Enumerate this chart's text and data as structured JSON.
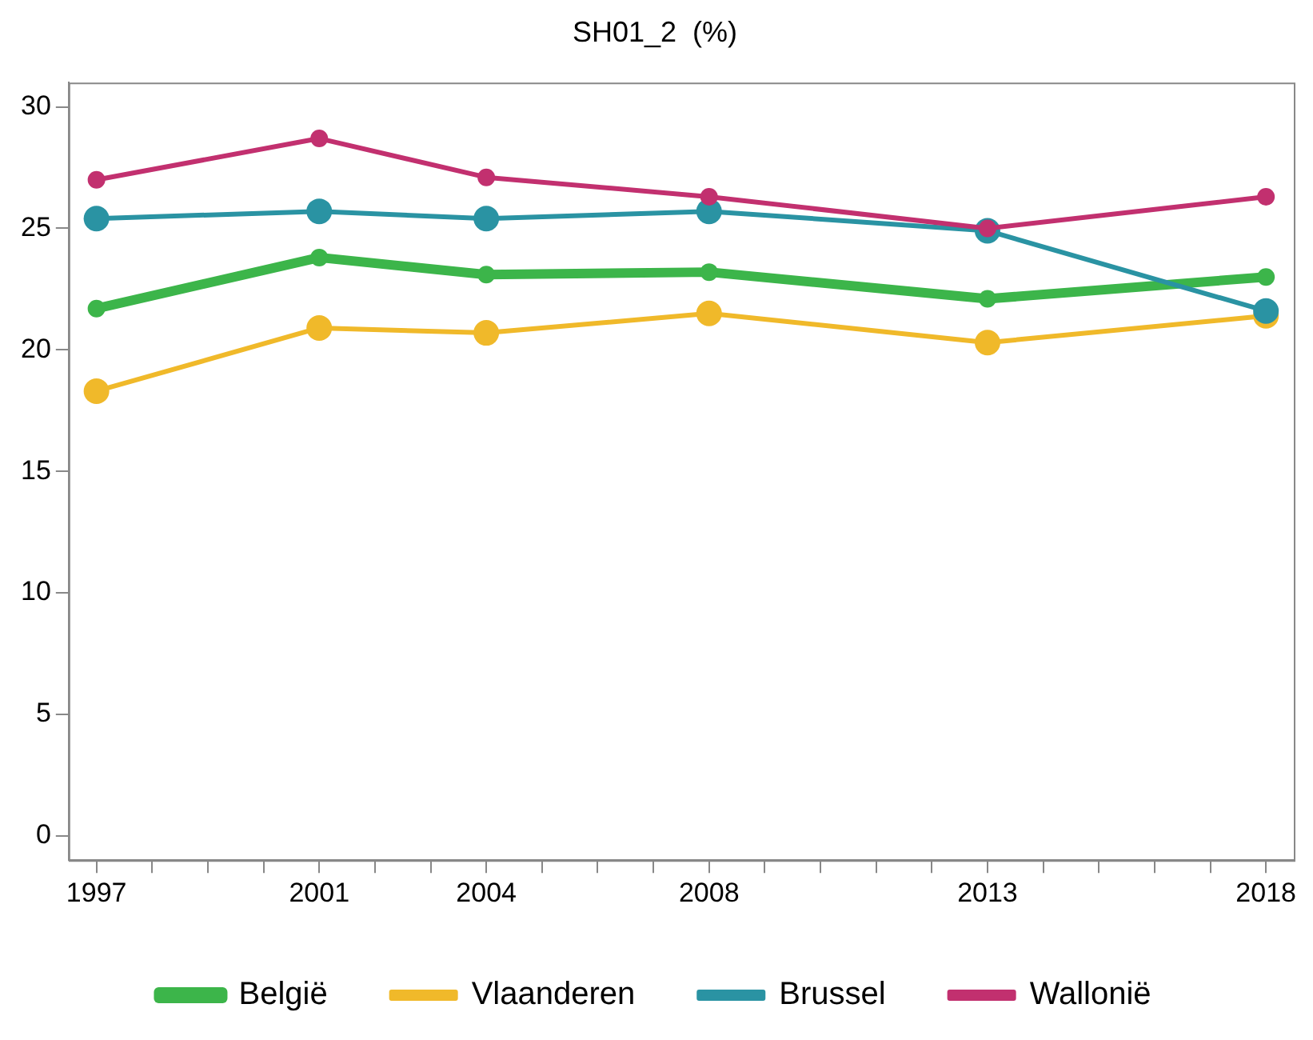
{
  "chart_data": {
    "type": "line",
    "title": "SH01_2  (%)",
    "x": [
      1997,
      2001,
      2004,
      2008,
      2013,
      2018
    ],
    "series": [
      {
        "name": "België",
        "color": "#3cb54a",
        "values": [
          21.7,
          23.8,
          23.1,
          23.2,
          22.1,
          23.0
        ]
      },
      {
        "name": "Vlaanderen",
        "color": "#f0b92a",
        "values": [
          18.3,
          20.9,
          20.7,
          21.5,
          20.3,
          21.4
        ]
      },
      {
        "name": "Brussel",
        "color": "#2a93a3",
        "values": [
          25.4,
          25.7,
          25.4,
          25.7,
          24.9,
          21.6
        ]
      },
      {
        "name": "Wallonië",
        "color": "#c2306f",
        "values": [
          27.0,
          28.7,
          27.1,
          26.3,
          25.0,
          26.3
        ]
      }
    ],
    "xlim": [
      1996.5,
      2018.5
    ],
    "xticks": [
      1997,
      {
        "value": 1998,
        "label": null
      },
      {
        "value": 1999,
        "label": null
      },
      {
        "value": 2000,
        "label": null
      },
      2001,
      {
        "value": 2002,
        "label": null
      },
      {
        "value": 2003,
        "label": null
      },
      2004,
      {
        "value": 2005,
        "label": null
      },
      {
        "value": 2006,
        "label": null
      },
      {
        "value": 2007,
        "label": null
      },
      2008,
      {
        "value": 2009,
        "label": null
      },
      {
        "value": 2010,
        "label": null
      },
      {
        "value": 2011,
        "label": null
      },
      {
        "value": 2012,
        "label": null
      },
      2013,
      {
        "value": 2014,
        "label": null
      },
      {
        "value": 2015,
        "label": null
      },
      {
        "value": 2016,
        "label": null
      },
      {
        "value": 2017,
        "label": null
      },
      2018
    ],
    "ylim": [
      -1,
      31
    ],
    "yticks": [
      0,
      5,
      10,
      15,
      20,
      25,
      30
    ],
    "grid": false,
    "legend": "bottom",
    "marker": "circle",
    "line_style": "solid"
  }
}
